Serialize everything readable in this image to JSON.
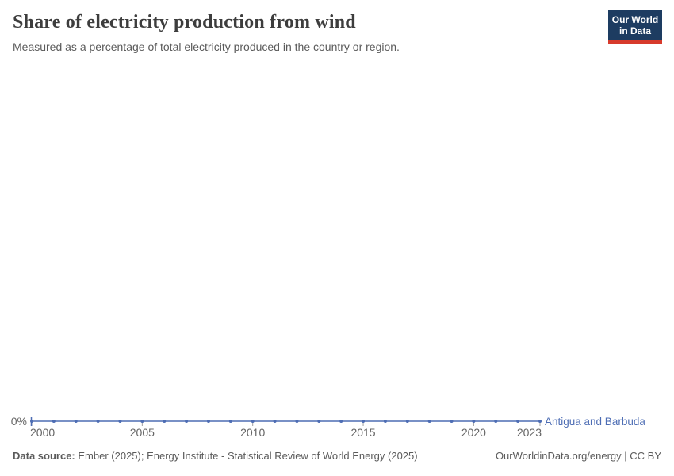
{
  "header": {
    "title": "Share of electricity production from wind",
    "subtitle": "Measured as a percentage of total electricity produced in the country or region.",
    "logo": {
      "line1": "Our World",
      "line2": "in Data",
      "bg_color": "#1d3c61",
      "accent_color": "#d73a2c"
    }
  },
  "chart_data": {
    "type": "line",
    "title": "Share of electricity production from wind",
    "xlabel": "",
    "ylabel": "",
    "unit": "%",
    "grid": false,
    "legend_position": "inline-right",
    "x": [
      2000,
      2001,
      2002,
      2003,
      2004,
      2005,
      2006,
      2007,
      2008,
      2009,
      2010,
      2011,
      2012,
      2013,
      2014,
      2015,
      2016,
      2017,
      2018,
      2019,
      2020,
      2021,
      2022,
      2023
    ],
    "series": [
      {
        "name": "Antigua and Barbuda",
        "color": "#4d6db4",
        "values": [
          0,
          0,
          0,
          0,
          0,
          0,
          0,
          0,
          0,
          0,
          0,
          0,
          0,
          0,
          0,
          0,
          0,
          0,
          0,
          0,
          0,
          0,
          0,
          0
        ]
      }
    ],
    "x_tick_labels": [
      "2000",
      "2005",
      "2010",
      "2015",
      "2020",
      "2023"
    ],
    "y_tick_labels": [
      "0%"
    ],
    "ylim": [
      0,
      0
    ],
    "x_range": [
      2000,
      2023
    ],
    "tick_color": "#a0a0a0",
    "axis_label_color": "#666666"
  },
  "footer": {
    "data_source_label": "Data source:",
    "data_source": "Ember (2025); Energy Institute - Statistical Review of World Energy (2025)",
    "link": "OurWorldinData.org/energy | CC BY"
  }
}
